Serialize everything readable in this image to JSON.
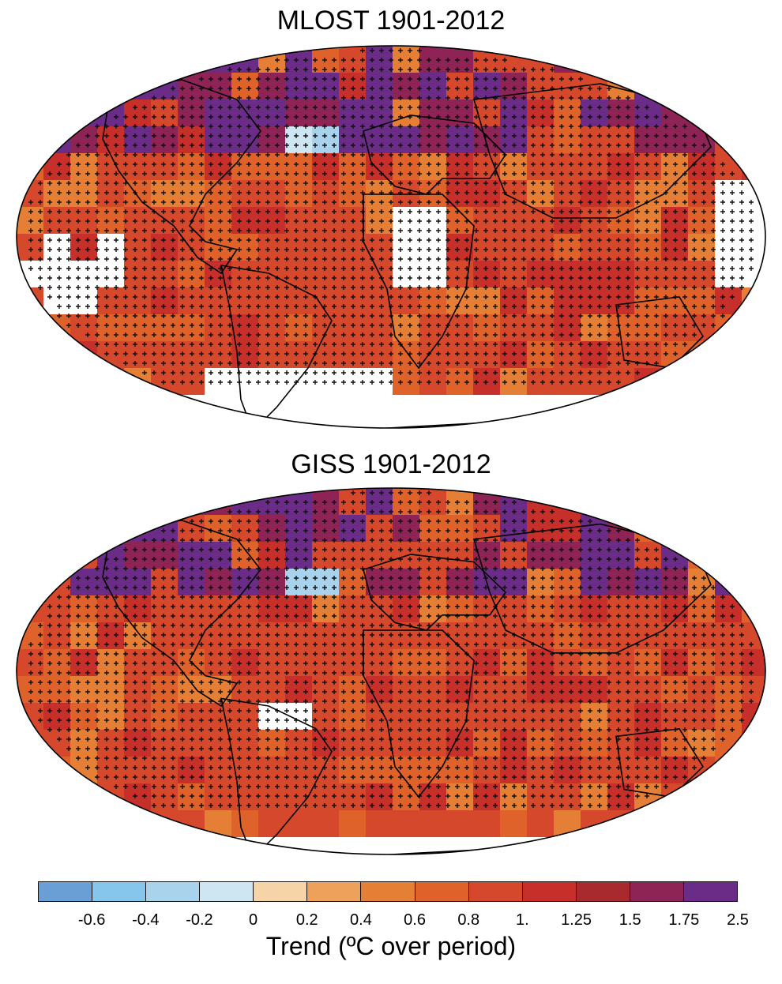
{
  "maps": [
    {
      "id": "mlost",
      "title": "MLOST 1901-2012"
    },
    {
      "id": "giss",
      "title": "GISS 1901-2012"
    }
  ],
  "legend": {
    "label": "Trend (ºC over period)",
    "ticks": [
      "-0.6",
      "-0.4",
      "-0.2",
      "0",
      "0.2",
      "0.4",
      "0.6",
      "0.8",
      "1.",
      "1.25",
      "1.5",
      "1.75",
      "2.5"
    ],
    "colors": [
      "#6a9fd6",
      "#86c6ec",
      "#a9d3ec",
      "#cde6f2",
      "#f7d3a8",
      "#eda15a",
      "#e57f36",
      "#e0622b",
      "#d6482b",
      "#c7302a",
      "#a8292e",
      "#8e2456",
      "#6b2c88"
    ]
  },
  "map_colors": {
    "ocean_base": "#d95532",
    "land_line": "#000000",
    "missing": "#ffffff"
  }
}
